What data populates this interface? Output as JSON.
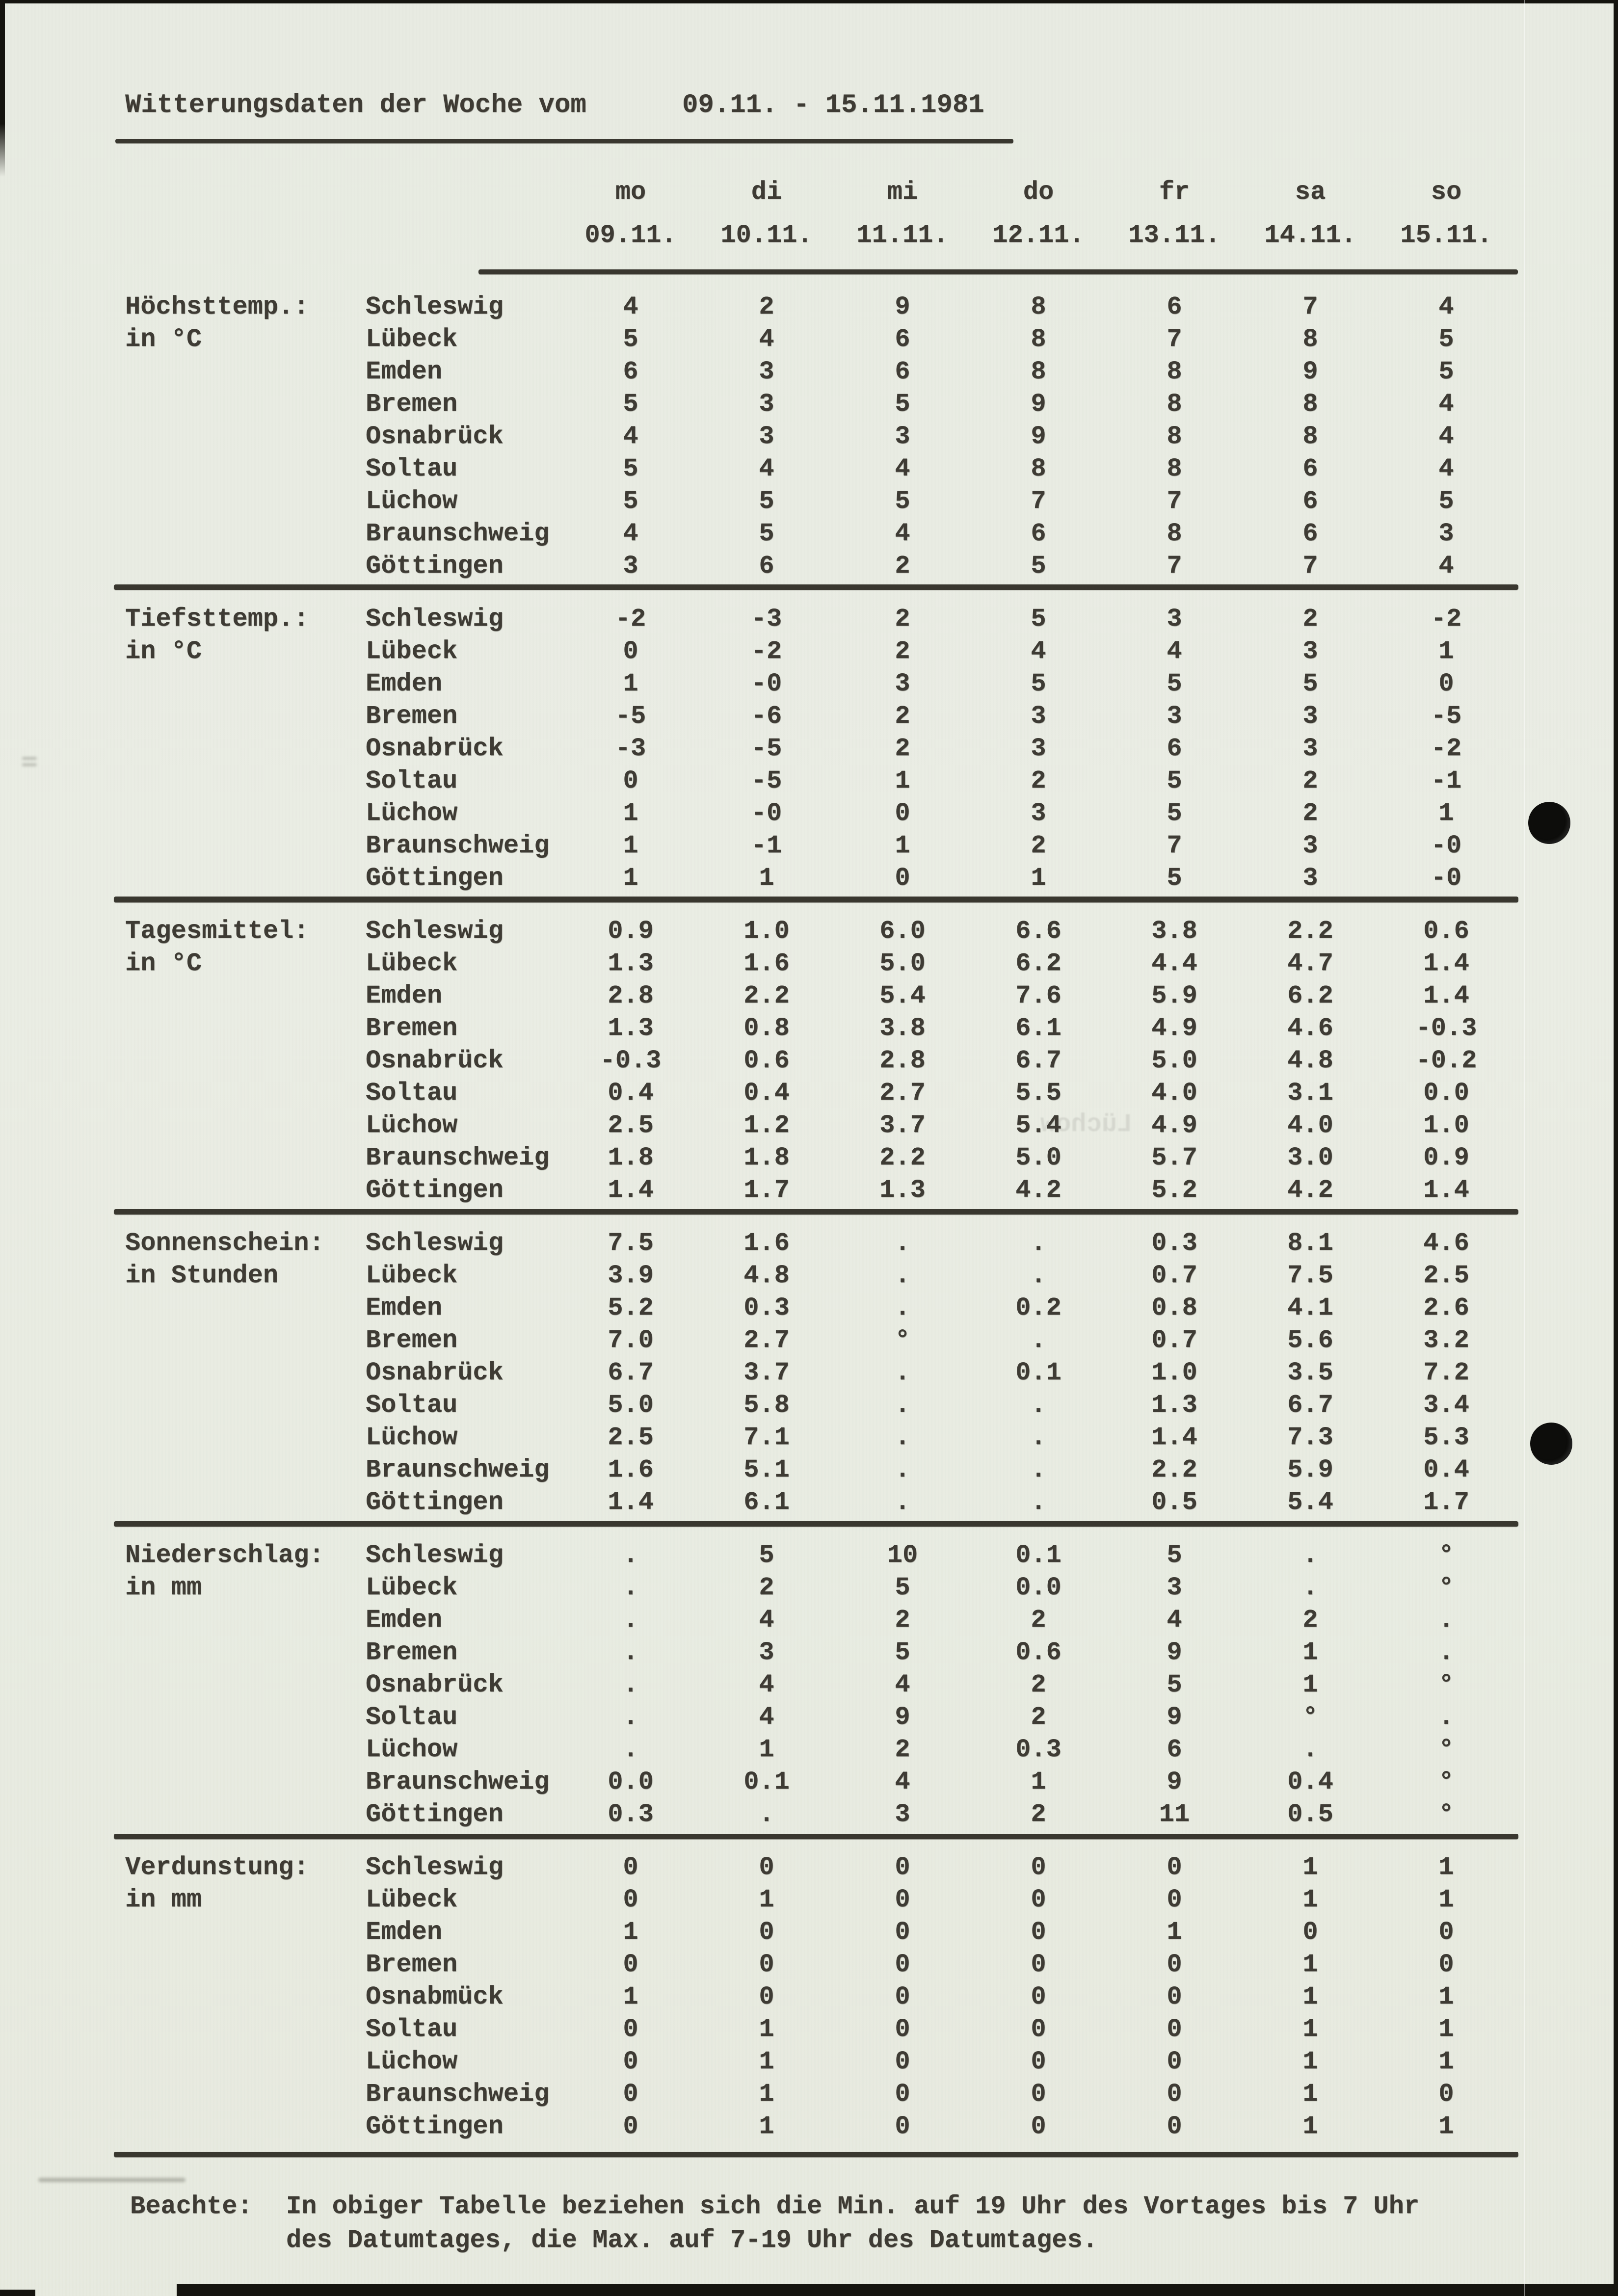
{
  "title": {
    "label": "Witterungsdaten der Woche vom",
    "dates": "09.11. - 15.11.1981"
  },
  "header": {
    "days": [
      "mo",
      "di",
      "mi",
      "do",
      "fr",
      "sa",
      "so"
    ],
    "dates": [
      "09.11.",
      "10.11.",
      "11.11.",
      "12.11.",
      "13.11.",
      "14.11.",
      "15.11."
    ]
  },
  "sections": [
    {
      "label": "Höchsttemp.:",
      "unit": "in °C",
      "rows": [
        {
          "city": "Schleswig",
          "values": [
            "4",
            "2",
            "9",
            "8",
            "6",
            "7",
            "4"
          ]
        },
        {
          "city": "Lübeck",
          "values": [
            "5",
            "4",
            "6",
            "8",
            "7",
            "8",
            "5"
          ]
        },
        {
          "city": "Emden",
          "values": [
            "6",
            "3",
            "6",
            "8",
            "8",
            "9",
            "5"
          ]
        },
        {
          "city": "Bremen",
          "values": [
            "5",
            "3",
            "5",
            "9",
            "8",
            "8",
            "4"
          ]
        },
        {
          "city": "Osnabrück",
          "values": [
            "4",
            "3",
            "3",
            "9",
            "8",
            "8",
            "4"
          ]
        },
        {
          "city": "Soltau",
          "values": [
            "5",
            "4",
            "4",
            "8",
            "8",
            "6",
            "4"
          ]
        },
        {
          "city": "Lüchow",
          "values": [
            "5",
            "5",
            "5",
            "7",
            "7",
            "6",
            "5"
          ]
        },
        {
          "city": "Braunschweig",
          "values": [
            "4",
            "5",
            "4",
            "6",
            "8",
            "6",
            "3"
          ]
        },
        {
          "city": "Göttingen",
          "values": [
            "3",
            "6",
            "2",
            "5",
            "7",
            "7",
            "4"
          ]
        }
      ]
    },
    {
      "label": "Tiefsttemp.:",
      "unit": "in °C",
      "rows": [
        {
          "city": "Schleswig",
          "values": [
            "-2",
            "-3",
            "2",
            "5",
            "3",
            "2",
            "-2"
          ]
        },
        {
          "city": "Lübeck",
          "values": [
            "0",
            "-2",
            "2",
            "4",
            "4",
            "3",
            "1"
          ]
        },
        {
          "city": "Emden",
          "values": [
            "1",
            "-0",
            "3",
            "5",
            "5",
            "5",
            "0"
          ]
        },
        {
          "city": "Bremen",
          "values": [
            "-5",
            "-6",
            "2",
            "3",
            "3",
            "3",
            "-5"
          ]
        },
        {
          "city": "Osnabrück",
          "values": [
            "-3",
            "-5",
            "2",
            "3",
            "6",
            "3",
            "-2"
          ]
        },
        {
          "city": "Soltau",
          "values": [
            "0",
            "-5",
            "1",
            "2",
            "5",
            "2",
            "-1"
          ]
        },
        {
          "city": "Lüchow",
          "values": [
            "1",
            "-0",
            "0",
            "3",
            "5",
            "2",
            "1"
          ]
        },
        {
          "city": "Braunschweig",
          "values": [
            "1",
            "-1",
            "1",
            "2",
            "7",
            "3",
            "-0"
          ]
        },
        {
          "city": "Göttingen",
          "values": [
            "1",
            "1",
            "0",
            "1",
            "5",
            "3",
            "-0"
          ]
        }
      ]
    },
    {
      "label": "Tagesmittel:",
      "unit": "in °C",
      "rows": [
        {
          "city": "Schleswig",
          "values": [
            "0.9",
            "1.0",
            "6.0",
            "6.6",
            "3.8",
            "2.2",
            "0.6"
          ]
        },
        {
          "city": "Lübeck",
          "values": [
            "1.3",
            "1.6",
            "5.0",
            "6.2",
            "4.4",
            "4.7",
            "1.4"
          ]
        },
        {
          "city": "Emden",
          "values": [
            "2.8",
            "2.2",
            "5.4",
            "7.6",
            "5.9",
            "6.2",
            "1.4"
          ]
        },
        {
          "city": "Bremen",
          "values": [
            "1.3",
            "0.8",
            "3.8",
            "6.1",
            "4.9",
            "4.6",
            "-0.3"
          ]
        },
        {
          "city": "Osnabrück",
          "values": [
            "-0.3",
            "0.6",
            "2.8",
            "6.7",
            "5.0",
            "4.8",
            "-0.2"
          ]
        },
        {
          "city": "Soltau",
          "values": [
            "0.4",
            "0.4",
            "2.7",
            "5.5",
            "4.0",
            "3.1",
            "0.0"
          ]
        },
        {
          "city": "Lüchow",
          "values": [
            "2.5",
            "1.2",
            "3.7",
            "5.4",
            "4.9",
            "4.0",
            "1.0"
          ]
        },
        {
          "city": "Braunschweig",
          "values": [
            "1.8",
            "1.8",
            "2.2",
            "5.0",
            "5.7",
            "3.0",
            "0.9"
          ]
        },
        {
          "city": "Göttingen",
          "values": [
            "1.4",
            "1.7",
            "1.3",
            "4.2",
            "5.2",
            "4.2",
            "1.4"
          ]
        }
      ]
    },
    {
      "label": "Sonnenschein:",
      "unit": "in Stunden",
      "rows": [
        {
          "city": "Schleswig",
          "values": [
            "7.5",
            "1.6",
            ".",
            ".",
            "0.3",
            "8.1",
            "4.6"
          ]
        },
        {
          "city": "Lübeck",
          "values": [
            "3.9",
            "4.8",
            ".",
            ".",
            "0.7",
            "7.5",
            "2.5"
          ]
        },
        {
          "city": "Emden",
          "values": [
            "5.2",
            "0.3",
            ".",
            "0.2",
            "0.8",
            "4.1",
            "2.6"
          ]
        },
        {
          "city": "Bremen",
          "values": [
            "7.0",
            "2.7",
            "°",
            ".",
            "0.7",
            "5.6",
            "3.2"
          ]
        },
        {
          "city": "Osnabrück",
          "values": [
            "6.7",
            "3.7",
            ".",
            "0.1",
            "1.0",
            "3.5",
            "7.2"
          ]
        },
        {
          "city": "Soltau",
          "values": [
            "5.0",
            "5.8",
            ".",
            ".",
            "1.3",
            "6.7",
            "3.4"
          ]
        },
        {
          "city": "Lüchow",
          "values": [
            "2.5",
            "7.1",
            ".",
            ".",
            "1.4",
            "7.3",
            "5.3"
          ]
        },
        {
          "city": "Braunschweig",
          "values": [
            "1.6",
            "5.1",
            ".",
            ".",
            "2.2",
            "5.9",
            "0.4"
          ]
        },
        {
          "city": "Göttingen",
          "values": [
            "1.4",
            "6.1",
            ".",
            ".",
            "0.5",
            "5.4",
            "1.7"
          ]
        }
      ]
    },
    {
      "label": "Niederschlag:",
      "unit": "in mm",
      "rows": [
        {
          "city": "Schleswig",
          "values": [
            ".",
            "5",
            "10",
            "0.1",
            "5",
            ".",
            "°"
          ]
        },
        {
          "city": "Lübeck",
          "values": [
            ".",
            "2",
            "5",
            "0.0",
            "3",
            ".",
            "°"
          ]
        },
        {
          "city": "Emden",
          "values": [
            ".",
            "4",
            "2",
            "2",
            "4",
            "2",
            "."
          ]
        },
        {
          "city": "Bremen",
          "values": [
            ".",
            "3",
            "5",
            "0.6",
            "9",
            "1",
            "."
          ]
        },
        {
          "city": "Osnabrück",
          "values": [
            ".",
            "4",
            "4",
            "2",
            "5",
            "1",
            "°"
          ]
        },
        {
          "city": "Soltau",
          "values": [
            ".",
            "4",
            "9",
            "2",
            "9",
            "°",
            "."
          ]
        },
        {
          "city": "Lüchow",
          "values": [
            ".",
            "1",
            "2",
            "0.3",
            "6",
            ".",
            "°"
          ]
        },
        {
          "city": "Braunschweig",
          "values": [
            "0.0",
            "0.1",
            "4",
            "1",
            "9",
            "0.4",
            "°"
          ]
        },
        {
          "city": "Göttingen",
          "values": [
            "0.3",
            ".",
            "3",
            "2",
            "11",
            "0.5",
            "°"
          ]
        }
      ]
    },
    {
      "label": "Verdunstung:",
      "unit": "in mm",
      "rows": [
        {
          "city": "Schleswig",
          "values": [
            "0",
            "0",
            "0",
            "0",
            "0",
            "1",
            "1"
          ]
        },
        {
          "city": "Lübeck",
          "values": [
            "0",
            "1",
            "0",
            "0",
            "0",
            "1",
            "1"
          ]
        },
        {
          "city": "Emden",
          "values": [
            "1",
            "0",
            "0",
            "0",
            "1",
            "0",
            "0"
          ]
        },
        {
          "city": "Bremen",
          "values": [
            "0",
            "0",
            "0",
            "0",
            "0",
            "1",
            "0"
          ]
        },
        {
          "city": "Osnabmück",
          "values": [
            "1",
            "0",
            "0",
            "0",
            "0",
            "1",
            "1"
          ]
        },
        {
          "city": "Soltau",
          "values": [
            "0",
            "1",
            "0",
            "0",
            "0",
            "1",
            "1"
          ]
        },
        {
          "city": "Lüchow",
          "values": [
            "0",
            "1",
            "0",
            "0",
            "0",
            "1",
            "1"
          ]
        },
        {
          "city": "Braunschweig",
          "values": [
            "0",
            "1",
            "0",
            "0",
            "0",
            "1",
            "0"
          ]
        },
        {
          "city": "Göttingen",
          "values": [
            "0",
            "1",
            "0",
            "0",
            "0",
            "1",
            "1"
          ]
        }
      ]
    }
  ],
  "note": {
    "prefix": "Beachte:",
    "line1": "In obiger Tabelle beziehen sich die Min. auf 19 Uhr des Vortages bis 7 Uhr",
    "line2": "des Datumtages, die Max. auf 7-19 Uhr des Datumtages."
  },
  "artifacts": {
    "ghost_text": "Lüchow"
  }
}
